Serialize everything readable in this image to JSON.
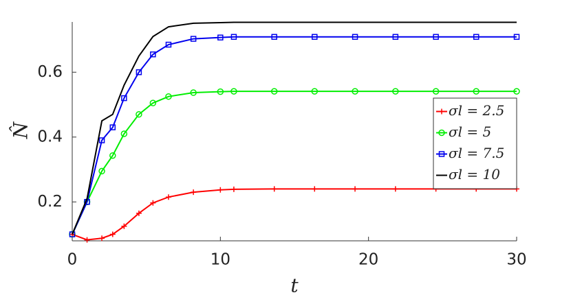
{
  "chart_data": {
    "type": "line",
    "xlabel": "t",
    "ylabel": "N̂",
    "x": [
      0,
      1,
      2,
      2.73,
      3.5,
      4.5,
      5.45,
      6.5,
      8.18,
      10,
      10.91,
      13.64,
      16.36,
      19.09,
      21.82,
      24.55,
      27.27,
      30
    ],
    "series": [
      {
        "name": "σl = 2.5",
        "color": "#ff0000",
        "marker": "plus",
        "values": [
          0.1,
          0.083,
          0.088,
          0.1,
          0.125,
          0.165,
          0.197,
          0.215,
          0.23,
          0.237,
          0.239,
          0.24,
          0.24,
          0.24,
          0.24,
          0.24,
          0.24,
          0.24
        ]
      },
      {
        "name": "σl = 5",
        "color": "#00ee00",
        "marker": "circle",
        "values": [
          0.1,
          0.2,
          0.295,
          0.343,
          0.41,
          0.47,
          0.505,
          0.525,
          0.537,
          0.54,
          0.541,
          0.541,
          0.541,
          0.541,
          0.541,
          0.541,
          0.541,
          0.541
        ]
      },
      {
        "name": "σl = 7.5",
        "color": "#0000ee",
        "marker": "square",
        "values": [
          0.1,
          0.2,
          0.39,
          0.43,
          0.52,
          0.6,
          0.655,
          0.685,
          0.703,
          0.707,
          0.709,
          0.709,
          0.709,
          0.709,
          0.709,
          0.709,
          0.709,
          0.709
        ]
      },
      {
        "name": "σl = 10",
        "color": "#000000",
        "marker": "none",
        "values": [
          0.1,
          0.21,
          0.45,
          0.47,
          0.56,
          0.65,
          0.71,
          0.74,
          0.751,
          0.753,
          0.754,
          0.754,
          0.754,
          0.754,
          0.754,
          0.754,
          0.754,
          0.754
        ]
      }
    ],
    "xlim": [
      0,
      30
    ],
    "ylim": [
      0.08,
      0.755
    ],
    "xticks": [
      0,
      10,
      20,
      30
    ],
    "yticks": [
      0.2,
      0.4,
      0.6
    ],
    "grid": false,
    "legend": "east"
  }
}
